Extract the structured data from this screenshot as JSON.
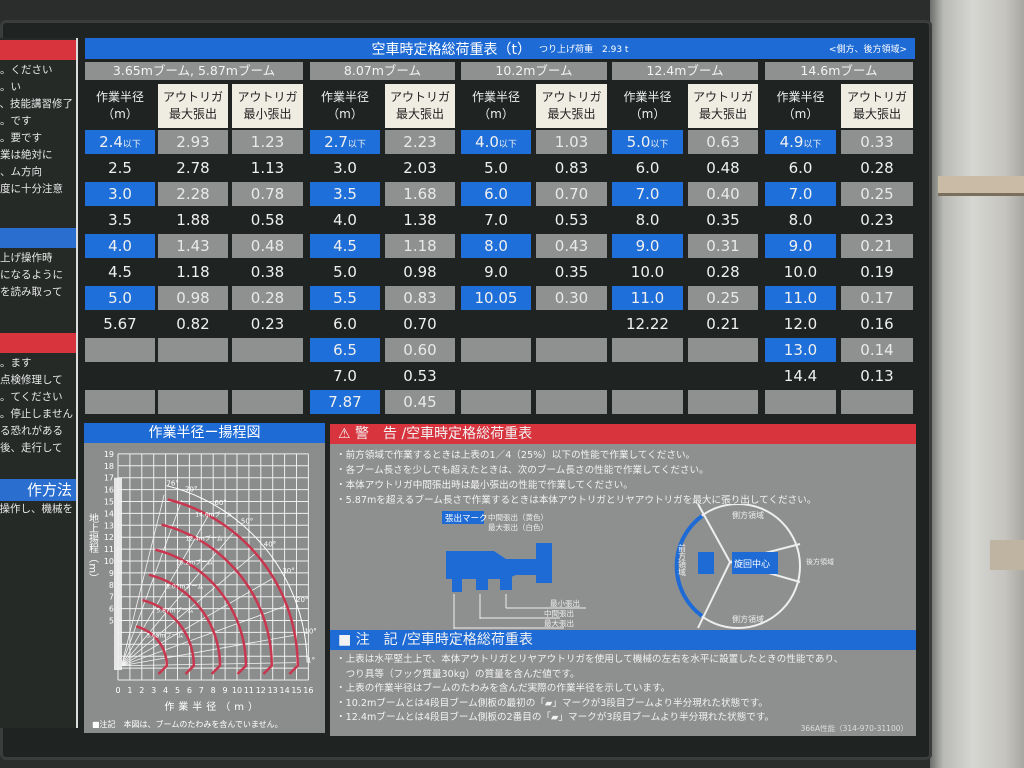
{
  "left_panel": {
    "lines_1": [
      "ください。",
      "い。",
      "技能講習修了、",
      "です。",
      "要です。",
      "業は絶対に",
      "",
      "ム方向、",
      "",
      "度に十分注意"
    ],
    "lines_2": [
      "上げ操作時",
      "",
      "になるように",
      "",
      "を読み取って"
    ],
    "lines_3": [
      "ます。",
      "点検修理して",
      "",
      "てください。",
      "停止しません。",
      "る恐れがある",
      "後、走行して"
    ],
    "section_title": "作方法",
    "last_line": "操作し、機械を"
  },
  "table": {
    "title": "空車時定格総荷重表（t）",
    "hook_note": "つり上げ荷重　2.93 t",
    "area_note": "<側方、後方領域>",
    "radius_header": [
      "作業半径",
      "（m）"
    ],
    "max_header": [
      "アウトリガ",
      "最大張出"
    ],
    "min_header": [
      "アウトリガ",
      "最小張出"
    ],
    "below_suffix": "以下",
    "groups": [
      {
        "boom": "3.65mブーム, 5.87mブーム",
        "has_min": true,
        "rows": [
          [
            "2.4",
            "2.93",
            "1.23"
          ],
          [
            "2.5",
            "2.78",
            "1.13"
          ],
          [
            "3.0",
            "2.28",
            "0.78"
          ],
          [
            "3.5",
            "1.88",
            "0.58"
          ],
          [
            "4.0",
            "1.43",
            "0.48"
          ],
          [
            "4.5",
            "1.18",
            "0.38"
          ],
          [
            "5.0",
            "0.98",
            "0.28"
          ],
          [
            "5.67",
            "0.82",
            "0.23"
          ],
          [
            "",
            "",
            ""
          ],
          [
            "",
            "",
            ""
          ],
          [
            "",
            "",
            ""
          ]
        ]
      },
      {
        "boom": "8.07mブーム",
        "has_min": false,
        "rows": [
          [
            "2.7",
            "2.23"
          ],
          [
            "3.0",
            "2.03"
          ],
          [
            "3.5",
            "1.68"
          ],
          [
            "4.0",
            "1.38"
          ],
          [
            "4.5",
            "1.18"
          ],
          [
            "5.0",
            "0.98"
          ],
          [
            "5.5",
            "0.83"
          ],
          [
            "6.0",
            "0.70"
          ],
          [
            "6.5",
            "0.60"
          ],
          [
            "7.0",
            "0.53"
          ],
          [
            "7.87",
            "0.45"
          ]
        ]
      },
      {
        "boom": "10.2mブーム",
        "has_min": false,
        "rows": [
          [
            "4.0",
            "1.03"
          ],
          [
            "5.0",
            "0.83"
          ],
          [
            "6.0",
            "0.70"
          ],
          [
            "7.0",
            "0.53"
          ],
          [
            "8.0",
            "0.43"
          ],
          [
            "9.0",
            "0.35"
          ],
          [
            "10.05",
            "0.30"
          ],
          [
            "",
            ""
          ],
          [
            "",
            ""
          ],
          [
            "",
            ""
          ],
          [
            "",
            ""
          ]
        ]
      },
      {
        "boom": "12.4mブーム",
        "has_min": false,
        "rows": [
          [
            "5.0",
            "0.63"
          ],
          [
            "6.0",
            "0.48"
          ],
          [
            "7.0",
            "0.40"
          ],
          [
            "8.0",
            "0.35"
          ],
          [
            "9.0",
            "0.31"
          ],
          [
            "10.0",
            "0.28"
          ],
          [
            "11.0",
            "0.25"
          ],
          [
            "12.22",
            "0.21"
          ],
          [
            "",
            ""
          ],
          [
            "",
            ""
          ],
          [
            "",
            ""
          ]
        ]
      },
      {
        "boom": "14.6mブーム",
        "has_min": false,
        "rows": [
          [
            "4.9",
            "0.33"
          ],
          [
            "6.0",
            "0.28"
          ],
          [
            "7.0",
            "0.25"
          ],
          [
            "8.0",
            "0.23"
          ],
          [
            "9.0",
            "0.21"
          ],
          [
            "10.0",
            "0.19"
          ],
          [
            "11.0",
            "0.17"
          ],
          [
            "12.0",
            "0.16"
          ],
          [
            "13.0",
            "0.14"
          ],
          [
            "14.4",
            "0.13"
          ],
          [
            "",
            ""
          ]
        ]
      }
    ]
  },
  "diagram": {
    "title": "作業半径ー揚程図",
    "ylabel": "地上揚程（m）",
    "xlabel": "作業半径（m）",
    "note": "■注記　本図は、ブームのたわみを含んでいません。",
    "chart_data": {
      "type": "line",
      "xlim": [
        0,
        16
      ],
      "ylim": [
        0,
        19
      ],
      "x_ticks": [
        "0",
        "1",
        "2",
        "3",
        "4",
        "5",
        "6",
        "7",
        "8",
        "9",
        "10",
        "11",
        "12",
        "13",
        "14",
        "15",
        "16"
      ],
      "y_ticks": [
        "5",
        "6",
        "7",
        "8",
        "9",
        "10",
        "11",
        "12",
        "13",
        "14",
        "15",
        "16",
        "17",
        "18",
        "19"
      ],
      "angle_labels": [
        "76°",
        "70°",
        "60°",
        "50°",
        "40°",
        "30°",
        "20°",
        "10°",
        "1°"
      ],
      "angles": [
        76,
        70,
        60,
        50,
        40,
        30,
        20,
        10,
        1
      ],
      "series": [
        {
          "name": "3.65mブーム",
          "max_radius": 3.4
        },
        {
          "name": "5.87mブーム",
          "max_radius": 5.67
        },
        {
          "name": "8.07mブーム",
          "max_radius": 7.87
        },
        {
          "name": "10.2mブーム",
          "max_radius": 10.05
        },
        {
          "name": "12.4mブーム",
          "max_radius": 12.22
        },
        {
          "name": "14.6mブーム",
          "max_radius": 14.4
        }
      ],
      "grid": true
    }
  },
  "warning": {
    "title": "警　告 /空車時定格総荷重表",
    "items": [
      "・前方領域で作業するときは上表の1／4（25%）以下の性能で作業してください。",
      "・各ブーム長さを少しでも超えたときは、次のブーム長さの性能で作業してください。",
      "・本体アウトリガ中間張出時は最小張出の性能で作業してください。",
      "・5.87mを超えるブーム長さで作業するときは本体アウトリガとリヤアウトリガを最大に張り出してください。"
    ],
    "outrigger_fig": {
      "mark": "張出マーク",
      "mid_mark": "中間張出（黄色）",
      "max_mark": "最大張出（白色）",
      "min": "最小張出",
      "mid": "中間張出",
      "max": "最大張出"
    },
    "area_fig": {
      "center": "旋回中心",
      "front": "前方領域",
      "side_top": "側方領域",
      "side_bottom": "側方領域",
      "rear": "後方領域"
    }
  },
  "notes": {
    "title": "注　記 /空車時定格総荷重表",
    "items": [
      "・上表は水平堅土上で、本体アウトリガとリヤアウトリガを使用して機械の左右を水平に設置したときの性能であり、",
      "　つり具等（フック質量30kg）の質量を含んだ値です。",
      "・上表の作業半径はブームのたわみを含んだ実際の作業半径を示しています。",
      "・10.2mブームとは4段目ブーム側板の最初の「▰」マークが3段目ブームより半分現れた状態です。",
      "・12.4mブームとは4段目ブーム側板の2番目の「▰」マークが3段目ブームより半分現れた状態です。"
    ],
    "code": "366A性能（314-970-31100）"
  },
  "colors": {
    "blue": "#1e6fd9",
    "red": "#d8343e",
    "grey": "#8f9190",
    "curve": "#c8374f"
  }
}
